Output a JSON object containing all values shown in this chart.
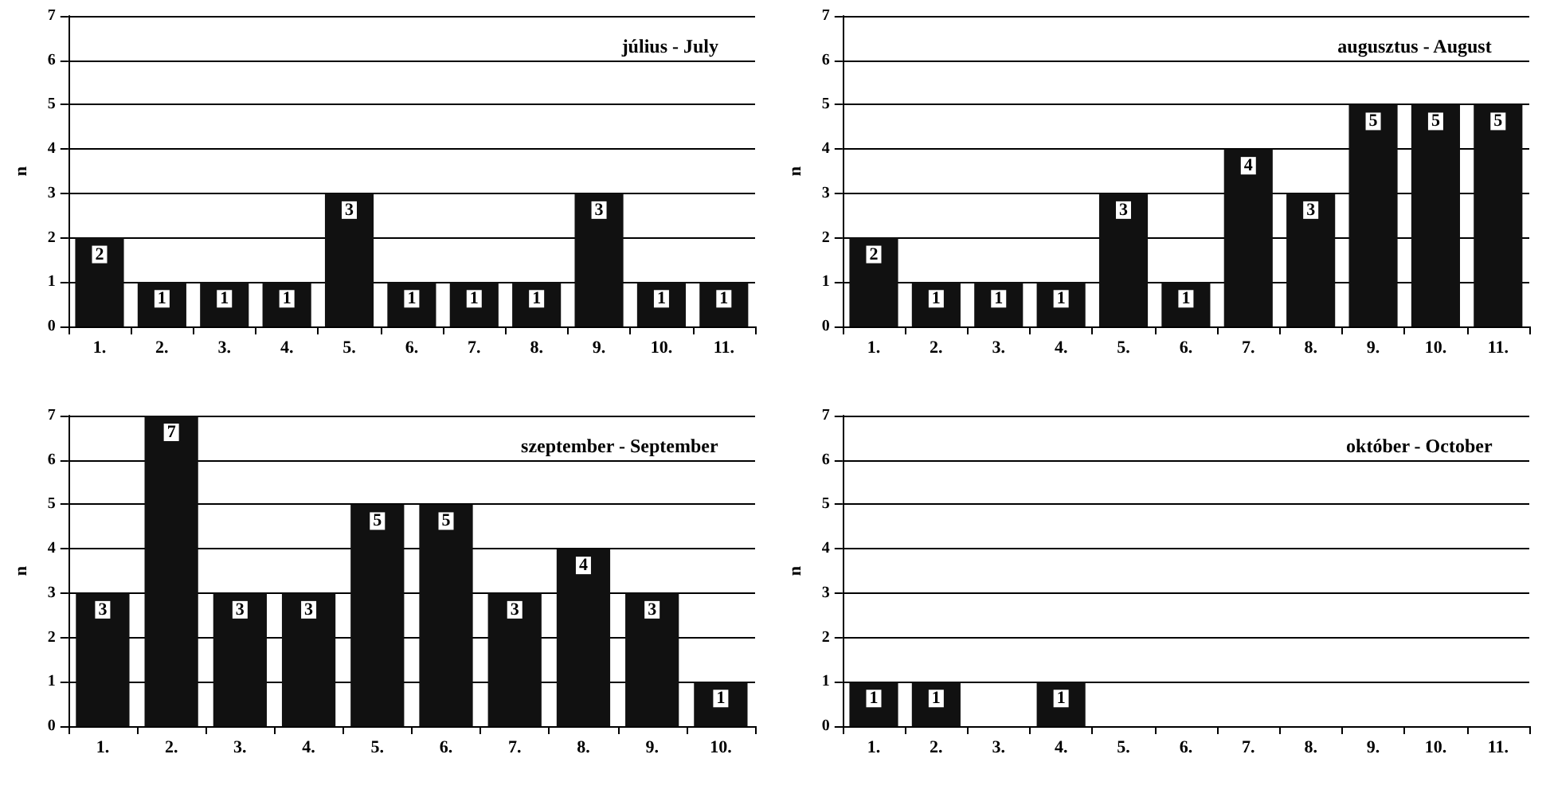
{
  "chart_data": [
    {
      "type": "bar",
      "title": "július - July",
      "ylabel": "n",
      "categories": [
        "1.",
        "2.",
        "3.",
        "4.",
        "5.",
        "6.",
        "7.",
        "8.",
        "9.",
        "10.",
        "11."
      ],
      "values": [
        2,
        1,
        1,
        1,
        3,
        1,
        1,
        1,
        3,
        1,
        1
      ],
      "color": "#111111",
      "ylim": [
        0,
        7
      ],
      "yticks": [
        0,
        1,
        2,
        3,
        4,
        5,
        6,
        7
      ],
      "grid": "y",
      "data_labels": true
    },
    {
      "type": "bar",
      "title": "augusztus - August",
      "ylabel": "n",
      "categories": [
        "1.",
        "2.",
        "3.",
        "4.",
        "5.",
        "6.",
        "7.",
        "8.",
        "9.",
        "10.",
        "11."
      ],
      "values": [
        2,
        1,
        1,
        1,
        3,
        1,
        4,
        3,
        5,
        5,
        5
      ],
      "color": "#111111",
      "ylim": [
        0,
        7
      ],
      "yticks": [
        0,
        1,
        2,
        3,
        4,
        5,
        6,
        7
      ],
      "grid": "y",
      "data_labels": true
    },
    {
      "type": "bar",
      "title": "szeptember - September",
      "ylabel": "n",
      "categories": [
        "1.",
        "2.",
        "3.",
        "4.",
        "5.",
        "6.",
        "7.",
        "8.",
        "9.",
        "10."
      ],
      "values": [
        3,
        7,
        3,
        3,
        5,
        5,
        3,
        4,
        3,
        1
      ],
      "color": "#111111",
      "ylim": [
        0,
        7
      ],
      "yticks": [
        0,
        1,
        2,
        3,
        4,
        5,
        6,
        7
      ],
      "grid": "y",
      "data_labels": true
    },
    {
      "type": "bar",
      "title": "október - October",
      "ylabel": "n",
      "categories": [
        "1.",
        "2.",
        "3.",
        "4.",
        "5.",
        "6.",
        "7.",
        "8.",
        "9.",
        "10.",
        "11."
      ],
      "values": [
        1,
        1,
        null,
        1,
        null,
        null,
        null,
        null,
        null,
        null,
        null
      ],
      "color": "#111111",
      "ylim": [
        0,
        7
      ],
      "yticks": [
        0,
        1,
        2,
        3,
        4,
        5,
        6,
        7
      ],
      "grid": "y",
      "data_labels": true
    }
  ]
}
